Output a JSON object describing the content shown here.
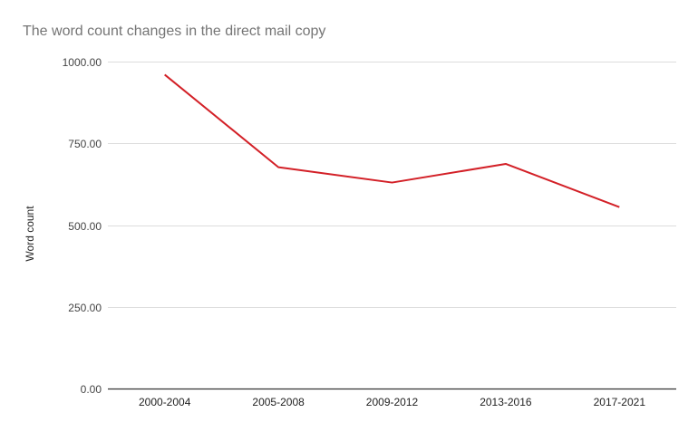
{
  "chart_data": {
    "type": "line",
    "title": "The word count changes in the direct mail copy",
    "xlabel": "",
    "ylabel": "Word count",
    "categories": [
      "2000-2004",
      "2005-2008",
      "2009-2012",
      "2013-2016",
      "2017-2021"
    ],
    "series": [
      {
        "name": "Word count",
        "color": "#d32027",
        "values": [
          960,
          677,
          630,
          687,
          555
        ]
      }
    ],
    "ylim": [
      0,
      1000
    ],
    "yticks": [
      "0.00",
      "250.00",
      "500.00",
      "750.00",
      "1000.00"
    ],
    "grid": true,
    "legend": "none"
  }
}
